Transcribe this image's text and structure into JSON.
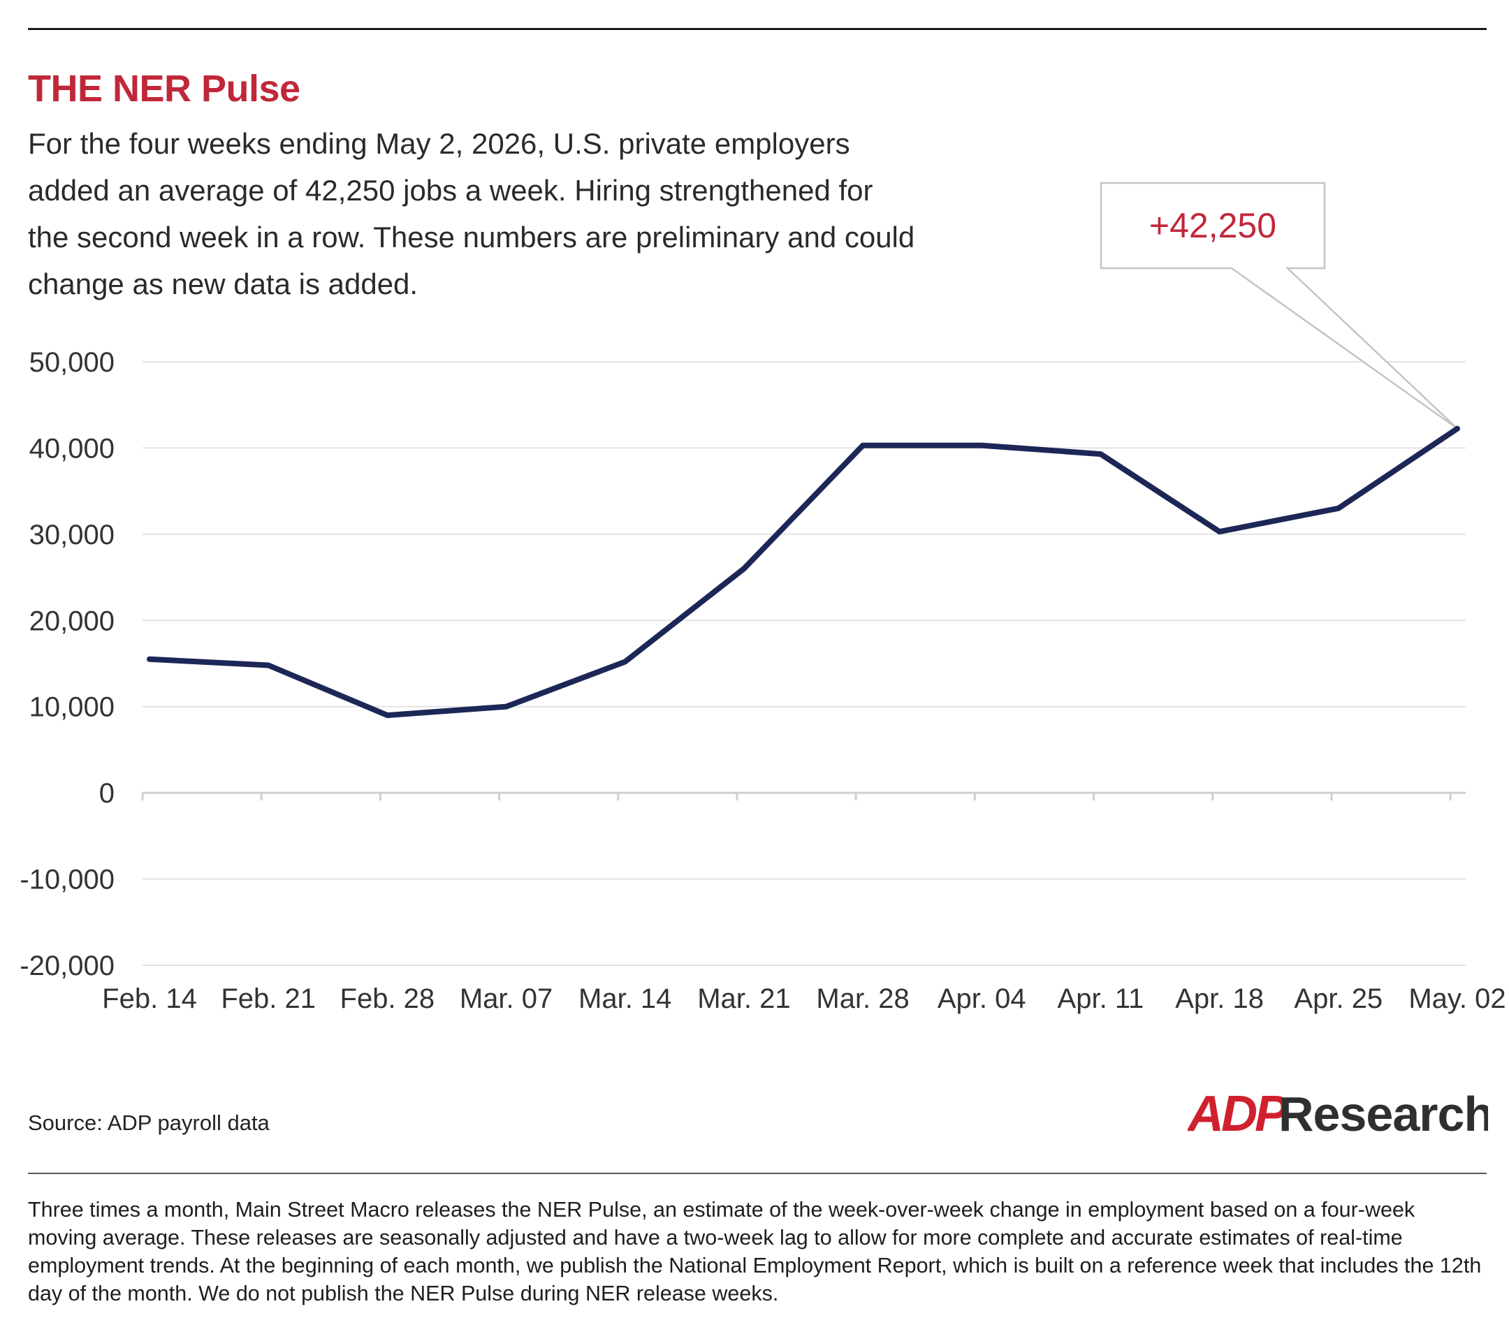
{
  "header": {
    "title": "THE NER Pulse",
    "description": "For the four weeks ending May 2, 2026, U.S. private employers added an average of 42,250 jobs a week. Hiring strengthened for the second week in a row. These numbers are preliminary and could change as new data is added."
  },
  "chart_data": {
    "type": "line",
    "categories": [
      "Feb. 14",
      "Feb. 21",
      "Feb. 28",
      "Mar. 07",
      "Mar. 14",
      "Mar. 21",
      "Mar. 28",
      "Apr. 04",
      "Apr. 11",
      "Apr. 18",
      "Apr. 25",
      "May. 02"
    ],
    "series": [
      {
        "values": [
          15500,
          14800,
          9000,
          10000,
          15200,
          26000,
          40300,
          40300,
          39300,
          30300,
          33000,
          42250
        ]
      }
    ],
    "ylim": [
      -20000,
      50000
    ],
    "yticks": [
      50000,
      40000,
      30000,
      20000,
      10000,
      0,
      -10000,
      -20000
    ],
    "ytick_labels": [
      "50,000",
      "40,000",
      "30,000",
      "20,000",
      "10,000",
      "0",
      "-10,000",
      "-20,000"
    ],
    "grid": true,
    "legend": "none",
    "annotation": {
      "text": "+42,250",
      "target_index": 11
    },
    "line_color": "#1c2757"
  },
  "footer": {
    "source": "Source: ADP payroll data",
    "logo_text": "ADP Research",
    "note": "Three times a month, Main Street Macro releases the NER Pulse, an estimate of the week-over-week change in employment based on a four-week moving average. These releases are seasonally adjusted and have a two-week lag to allow for more complete and accurate estimates of real-time employment trends. At the beginning of each month, we publish the National Employment Report, which is built on a reference week that includes the 12th day of the month. We do not publish the NER Pulse during NER release weeks."
  },
  "colors": {
    "accent": "#c0283a",
    "line": "#1c2757",
    "grid": "#e3e3e3",
    "logo_text": "#2f2f2f"
  }
}
